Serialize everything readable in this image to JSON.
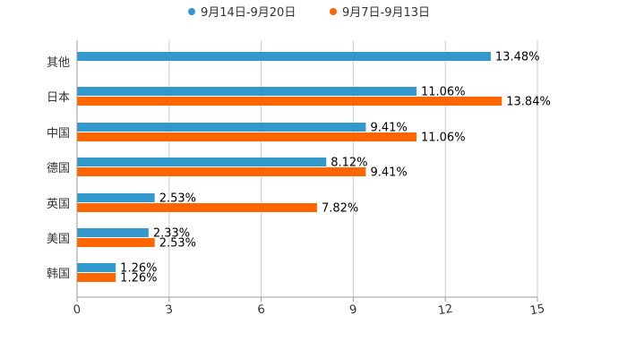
{
  "chart_data": {
    "type": "bar",
    "orientation": "horizontal",
    "categories": [
      "其他",
      "日本",
      "中国",
      "德国",
      "英国",
      "美国",
      "韩国"
    ],
    "series": [
      {
        "name": "9月14日-9月20日",
        "color": "#3399cc",
        "values": [
          13.48,
          11.06,
          9.41,
          8.12,
          2.53,
          2.33,
          1.26
        ],
        "labels": [
          "13.48%",
          "11.06%",
          "9.41%",
          "8.12%",
          "2.53%",
          "2.33%",
          "1.26%"
        ]
      },
      {
        "name": "9月7日-9月13日",
        "color": "#ff6600",
        "values": [
          null,
          13.84,
          11.06,
          9.41,
          7.82,
          2.53,
          1.26
        ],
        "labels": [
          "",
          "13.84%",
          "11.06%",
          "9.41%",
          "7.82%",
          "2.53%",
          "1.26%"
        ]
      }
    ],
    "xlim": [
      0,
      15
    ],
    "x_ticks": [
      0,
      3,
      6,
      9,
      12,
      15
    ],
    "x_tick_labels": [
      "0",
      "3",
      "6",
      "9",
      "12",
      "15"
    ],
    "grid": true,
    "legend_position": "top-center"
  }
}
